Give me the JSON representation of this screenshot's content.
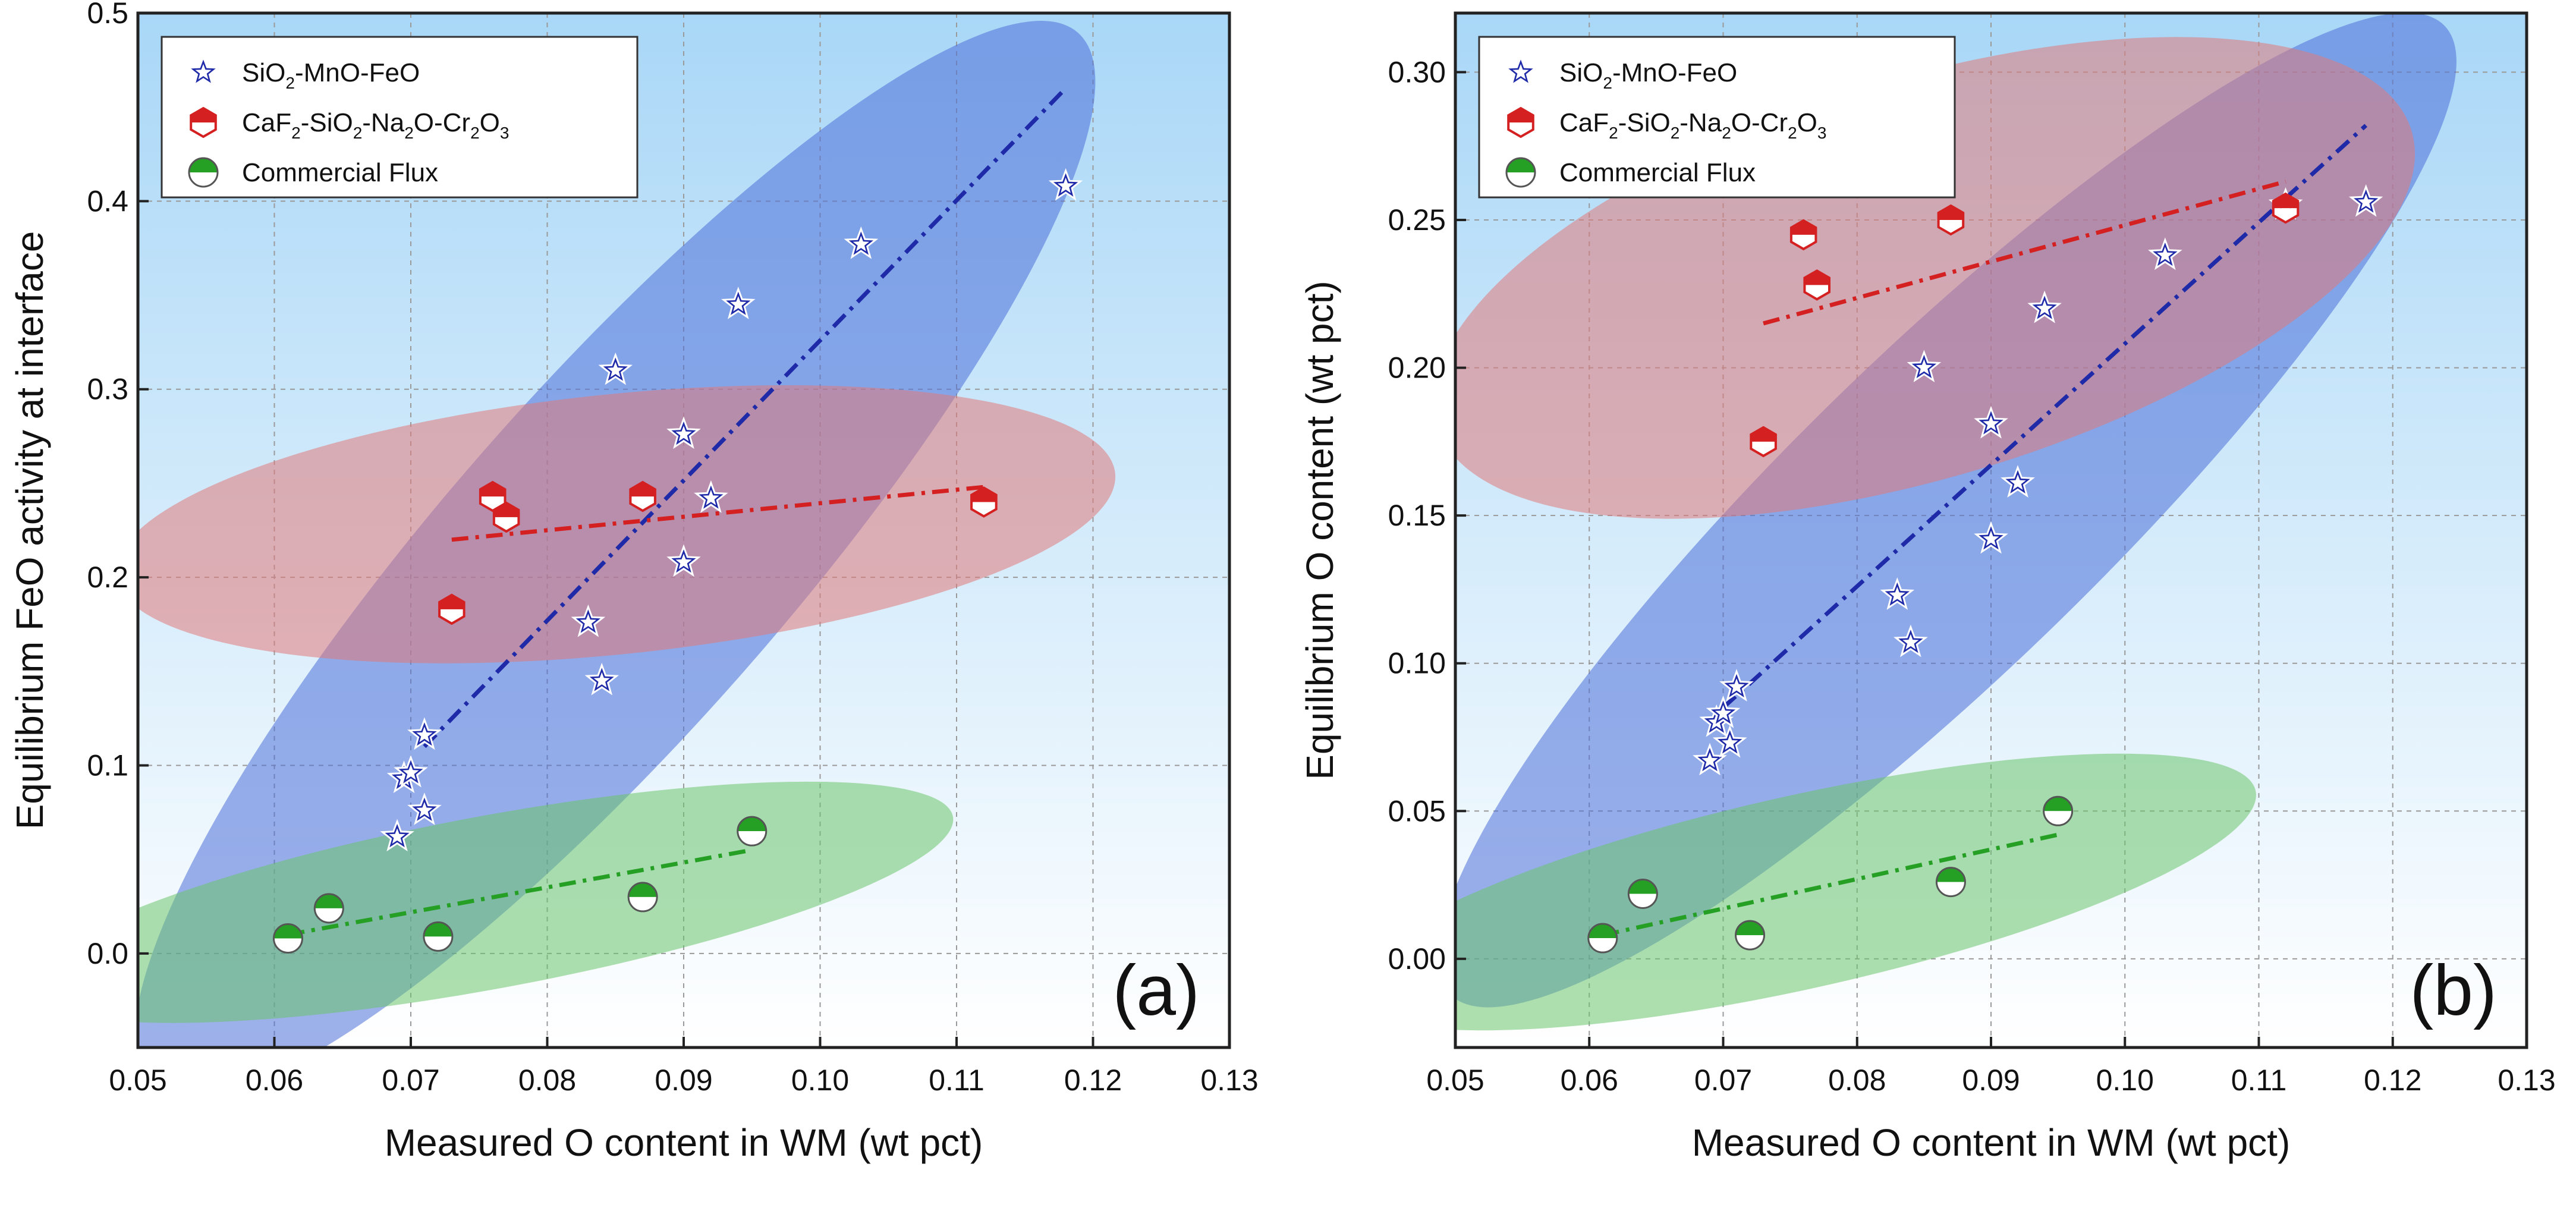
{
  "chart_data": [
    {
      "type": "scatter",
      "panel_label": "(a)",
      "xlabel": "Measured O content in WM (wt pct)",
      "ylabel": "Equilibrium FeO activity at interface",
      "xlim": [
        0.05,
        0.13
      ],
      "ylim": [
        -0.05,
        0.5
      ],
      "xticks": [
        0.05,
        0.06,
        0.07,
        0.08,
        0.09,
        0.1,
        0.11,
        0.12,
        0.13
      ],
      "xtick_labels": [
        "0.05",
        "0.06",
        "0.07",
        "0.08",
        "0.09",
        "0.10",
        "0.11",
        "0.12",
        "0.13"
      ],
      "yticks": [
        0.0,
        0.1,
        0.2,
        0.3,
        0.4,
        0.5
      ],
      "ytick_labels": [
        "0.0",
        "0.1",
        "0.2",
        "0.3",
        "0.4",
        "0.5"
      ],
      "grid": true,
      "legend_position": "top-left",
      "series": [
        {
          "name": "SiO2-MnO-FeO",
          "legend_parts": [
            "SiO",
            "2",
            "-MnO-FeO"
          ],
          "marker": "star",
          "color": "#1f2aa8",
          "x": [
            0.069,
            0.0695,
            0.07,
            0.071,
            0.071,
            0.083,
            0.084,
            0.085,
            0.09,
            0.09,
            0.092,
            0.094,
            0.103,
            0.118
          ],
          "y": [
            0.062,
            0.093,
            0.096,
            0.076,
            0.116,
            0.176,
            0.145,
            0.31,
            0.276,
            0.208,
            0.242,
            0.345,
            0.377,
            0.408
          ],
          "fit": {
            "x": [
              0.071,
              0.118
            ],
            "y": [
              0.11,
              0.46
            ]
          },
          "ellipse_color": "#4d6fd9"
        },
        {
          "name": "CaF2-SiO2-Na2O-Cr2O3",
          "legend_parts": [
            "CaF",
            "2",
            "-SiO",
            "2",
            "-Na",
            "2",
            "O-Cr",
            "2",
            "O",
            "3"
          ],
          "marker": "hexagon",
          "color": "#d42020",
          "x": [
            0.073,
            0.076,
            0.077,
            0.087,
            0.112
          ],
          "y": [
            0.183,
            0.243,
            0.232,
            0.243,
            0.24
          ],
          "fit": {
            "x": [
              0.073,
              0.112
            ],
            "y": [
              0.22,
              0.248
            ]
          },
          "ellipse_color": "#e07a7a"
        },
        {
          "name": "Commercial Flux",
          "legend_parts": [
            "Commercial Flux"
          ],
          "marker": "circle",
          "color": "#25a025",
          "x": [
            0.061,
            0.064,
            0.072,
            0.087,
            0.095
          ],
          "y": [
            0.008,
            0.024,
            0.009,
            0.03,
            0.065
          ],
          "fit": {
            "x": [
              0.061,
              0.095
            ],
            "y": [
              0.01,
              0.055
            ]
          },
          "ellipse_color": "#6cc46c"
        }
      ]
    },
    {
      "type": "scatter",
      "panel_label": "(b)",
      "xlabel": "Measured O content in WM (wt pct)",
      "ylabel": "Equilibrium O content (wt pct)",
      "xlim": [
        0.05,
        0.13
      ],
      "ylim": [
        -0.03,
        0.32
      ],
      "xticks": [
        0.05,
        0.06,
        0.07,
        0.08,
        0.09,
        0.1,
        0.11,
        0.12,
        0.13
      ],
      "xtick_labels": [
        "0.05",
        "0.06",
        "0.07",
        "0.08",
        "0.09",
        "0.10",
        "0.11",
        "0.12",
        "0.13"
      ],
      "yticks": [
        0.0,
        0.05,
        0.1,
        0.15,
        0.2,
        0.25,
        0.3
      ],
      "ytick_labels": [
        "0.00",
        "0.05",
        "0.10",
        "0.15",
        "0.20",
        "0.25",
        "0.30"
      ],
      "grid": true,
      "legend_position": "top-left",
      "series": [
        {
          "name": "SiO2-MnO-FeO",
          "legend_parts": [
            "SiO",
            "2",
            "-MnO-FeO"
          ],
          "marker": "star",
          "color": "#1f2aa8",
          "x": [
            0.069,
            0.0695,
            0.07,
            0.0705,
            0.071,
            0.083,
            0.084,
            0.085,
            0.09,
            0.09,
            0.092,
            0.094,
            0.103,
            0.112,
            0.118
          ],
          "y": [
            0.067,
            0.08,
            0.083,
            0.073,
            0.092,
            0.123,
            0.107,
            0.2,
            0.181,
            0.142,
            0.161,
            0.22,
            0.238,
            0.255,
            0.256
          ],
          "fit": {
            "x": [
              0.07,
              0.118
            ],
            "y": [
              0.085,
              0.282
            ]
          },
          "ellipse_color": "#4d6fd9"
        },
        {
          "name": "CaF2-SiO2-Na2O-Cr2O3",
          "legend_parts": [
            "CaF",
            "2",
            "-SiO",
            "2",
            "-Na",
            "2",
            "O-Cr",
            "2",
            "O",
            "3"
          ],
          "marker": "hexagon",
          "color": "#d42020",
          "x": [
            0.073,
            0.076,
            0.077,
            0.087,
            0.112
          ],
          "y": [
            0.175,
            0.245,
            0.228,
            0.25,
            0.254
          ],
          "fit": {
            "x": [
              0.073,
              0.112
            ],
            "y": [
              0.215,
              0.263
            ]
          },
          "ellipse_color": "#e07a7a"
        },
        {
          "name": "Commercial Flux",
          "legend_parts": [
            "Commercial Flux"
          ],
          "marker": "circle",
          "color": "#25a025",
          "x": [
            0.061,
            0.064,
            0.072,
            0.087,
            0.095
          ],
          "y": [
            0.007,
            0.022,
            0.008,
            0.026,
            0.05
          ],
          "fit": {
            "x": [
              0.061,
              0.095
            ],
            "y": [
              0.008,
              0.042
            ]
          },
          "ellipse_color": "#6cc46c"
        }
      ]
    }
  ]
}
